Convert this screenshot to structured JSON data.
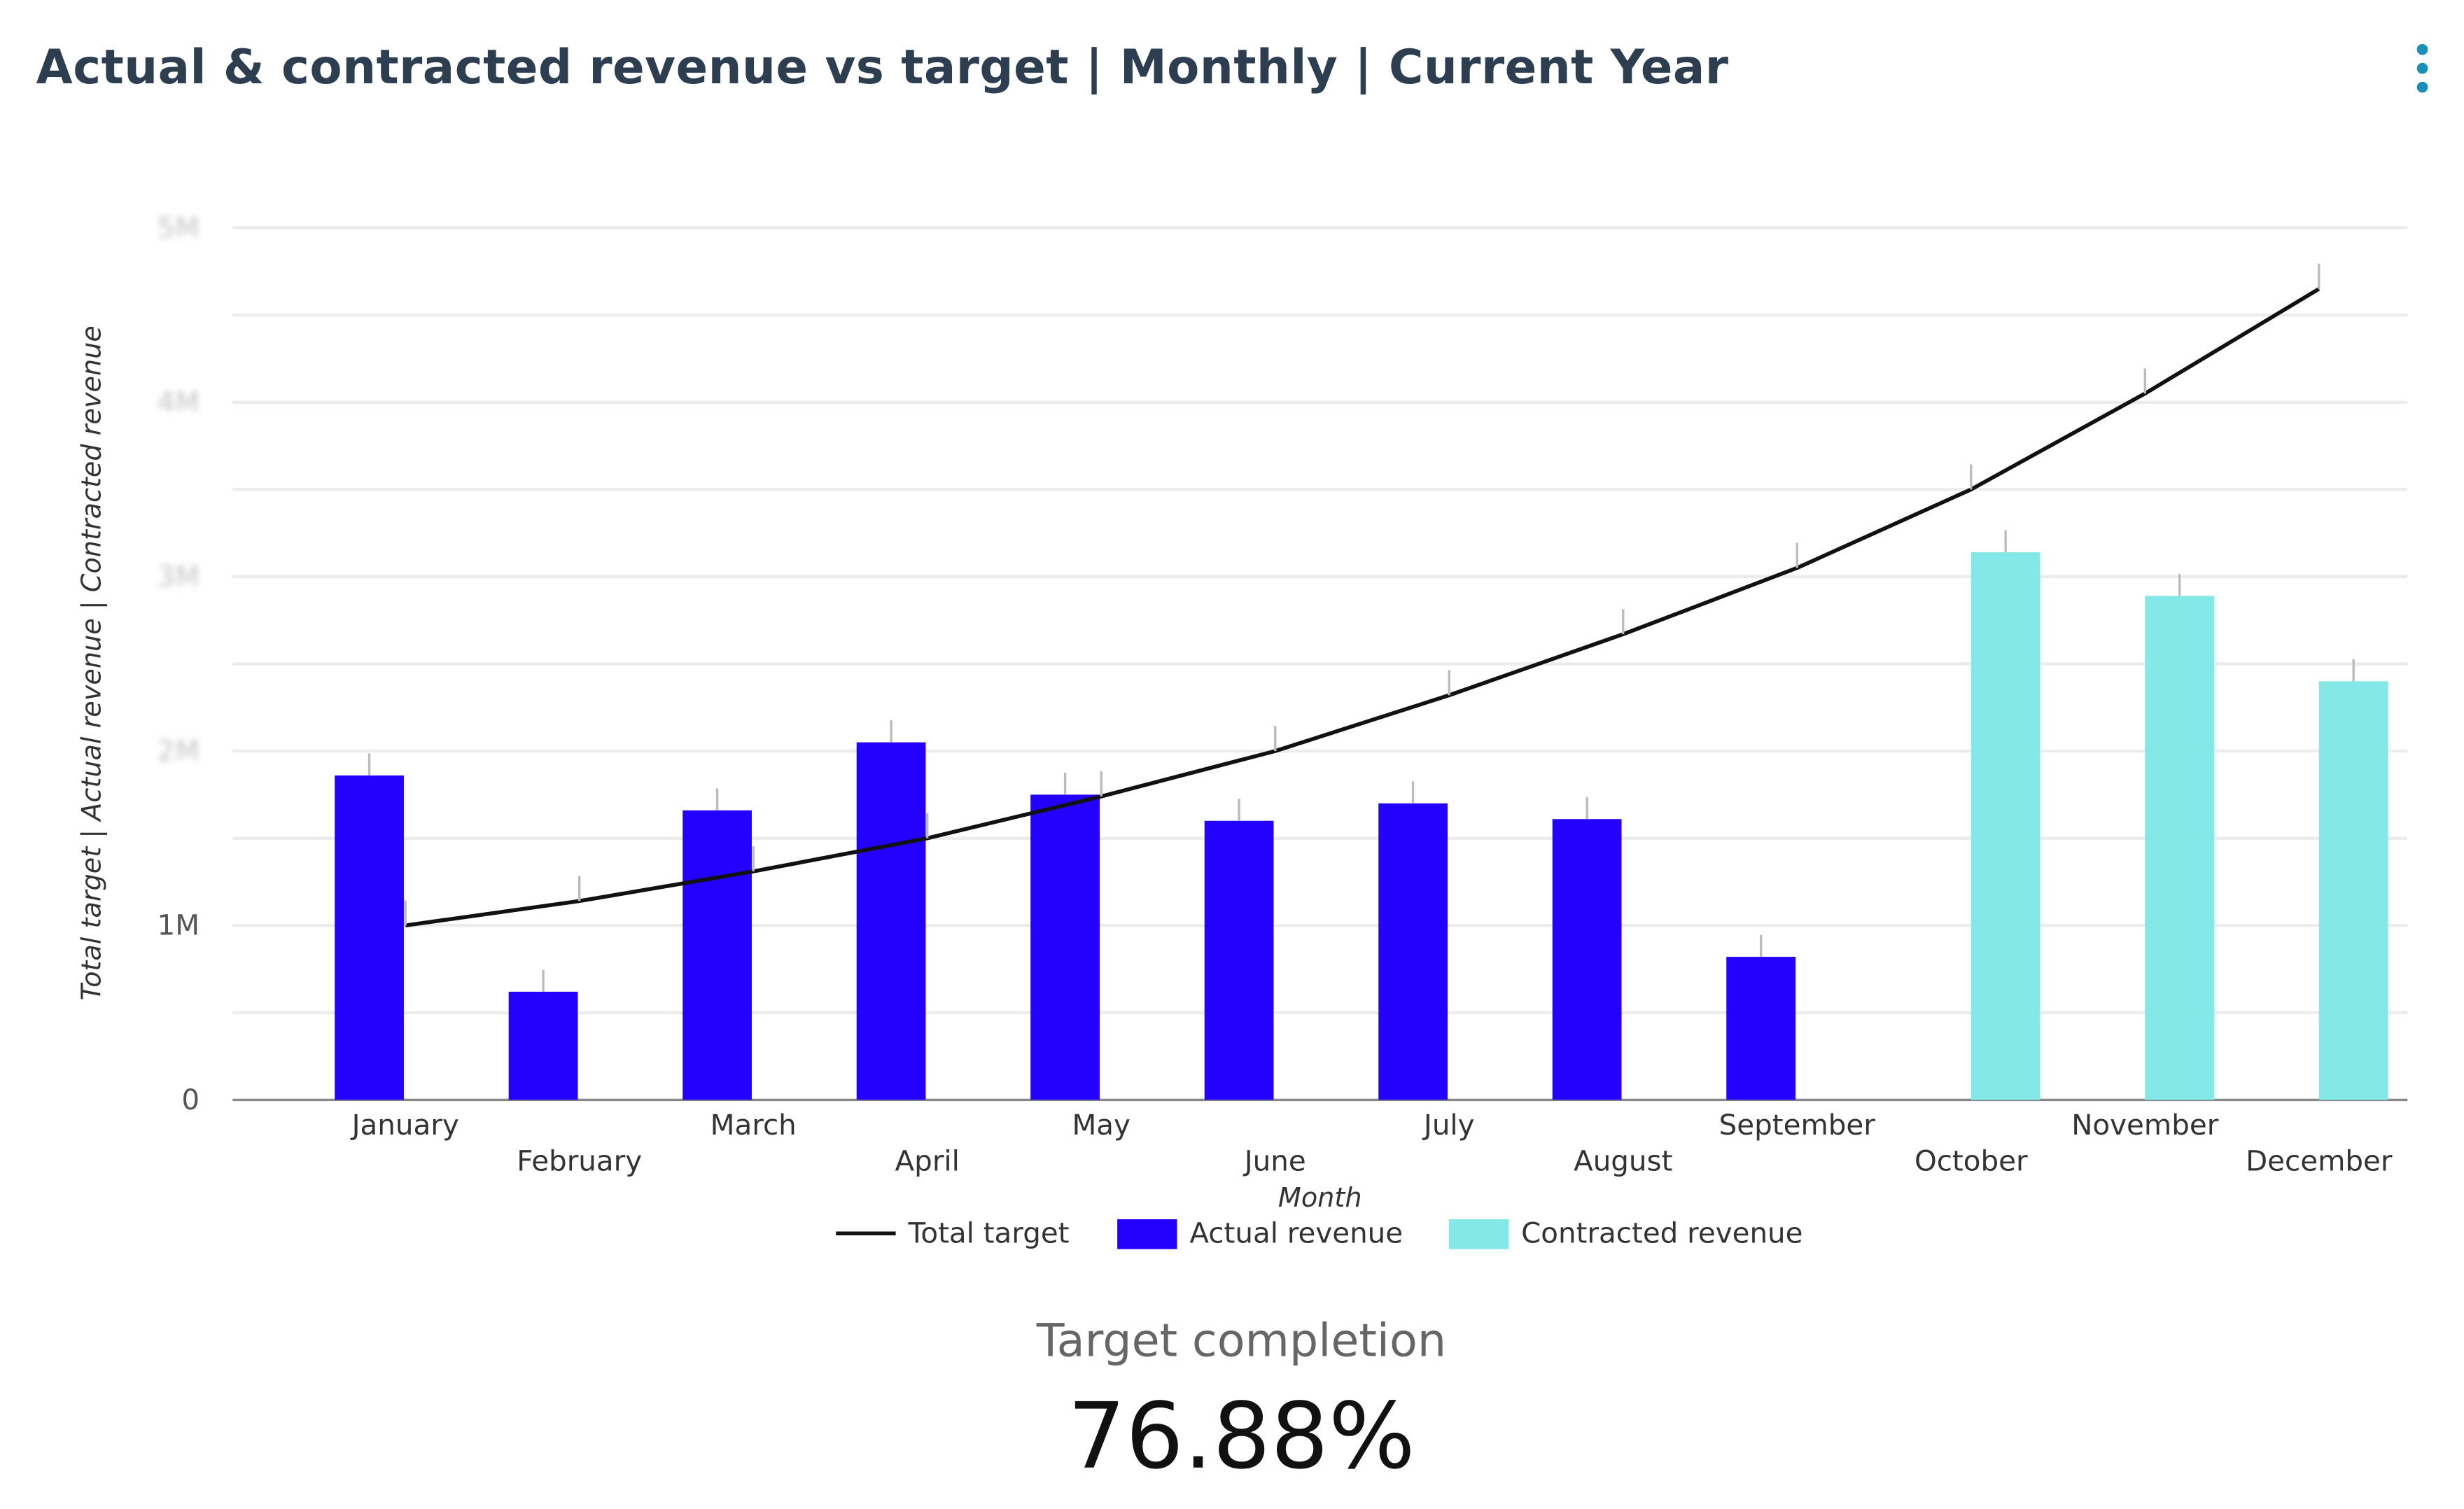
{
  "header": {
    "title": "Actual & contracted revenue vs target | Monthly | Current Year",
    "menu_icon": "kebab-menu-icon"
  },
  "chart_data": {
    "type": "bar+line",
    "xlabel": "Month",
    "ylabel": "Total target | Actual revenue | Contracted revenue",
    "categories": [
      "January",
      "February",
      "March",
      "April",
      "May",
      "June",
      "July",
      "August",
      "September",
      "October",
      "November",
      "December"
    ],
    "ylim": [
      0,
      5000000
    ],
    "yticks": [
      {
        "value": 0,
        "label": "0"
      },
      {
        "value": 1000000,
        "label": "1M"
      },
      {
        "value": 2000000,
        "label": "2M"
      },
      {
        "value": 3000000,
        "label": "3M"
      },
      {
        "value": 4000000,
        "label": "4M"
      },
      {
        "value": 5000000,
        "label": "5M"
      }
    ],
    "grid": true,
    "legend_position": "bottom",
    "series": [
      {
        "name": "Total target",
        "kind": "line",
        "color": "#111111",
        "values": [
          1000000,
          1140000,
          1310000,
          1500000,
          1740000,
          2000000,
          2320000,
          2670000,
          3050000,
          3500000,
          4050000,
          4650000
        ]
      },
      {
        "name": "Actual revenue",
        "kind": "bar",
        "color": "#2400ff",
        "values": [
          1860000,
          620000,
          1660000,
          2050000,
          1750000,
          1600000,
          1700000,
          1610000,
          820000,
          null,
          null,
          null
        ]
      },
      {
        "name": "Contracted revenue",
        "kind": "bar",
        "color": "#84e8e8",
        "values": [
          null,
          null,
          null,
          null,
          null,
          null,
          null,
          null,
          null,
          3140000,
          2890000,
          2400000
        ]
      }
    ]
  },
  "kpi": {
    "label": "Target completion",
    "value": "76.88%"
  }
}
